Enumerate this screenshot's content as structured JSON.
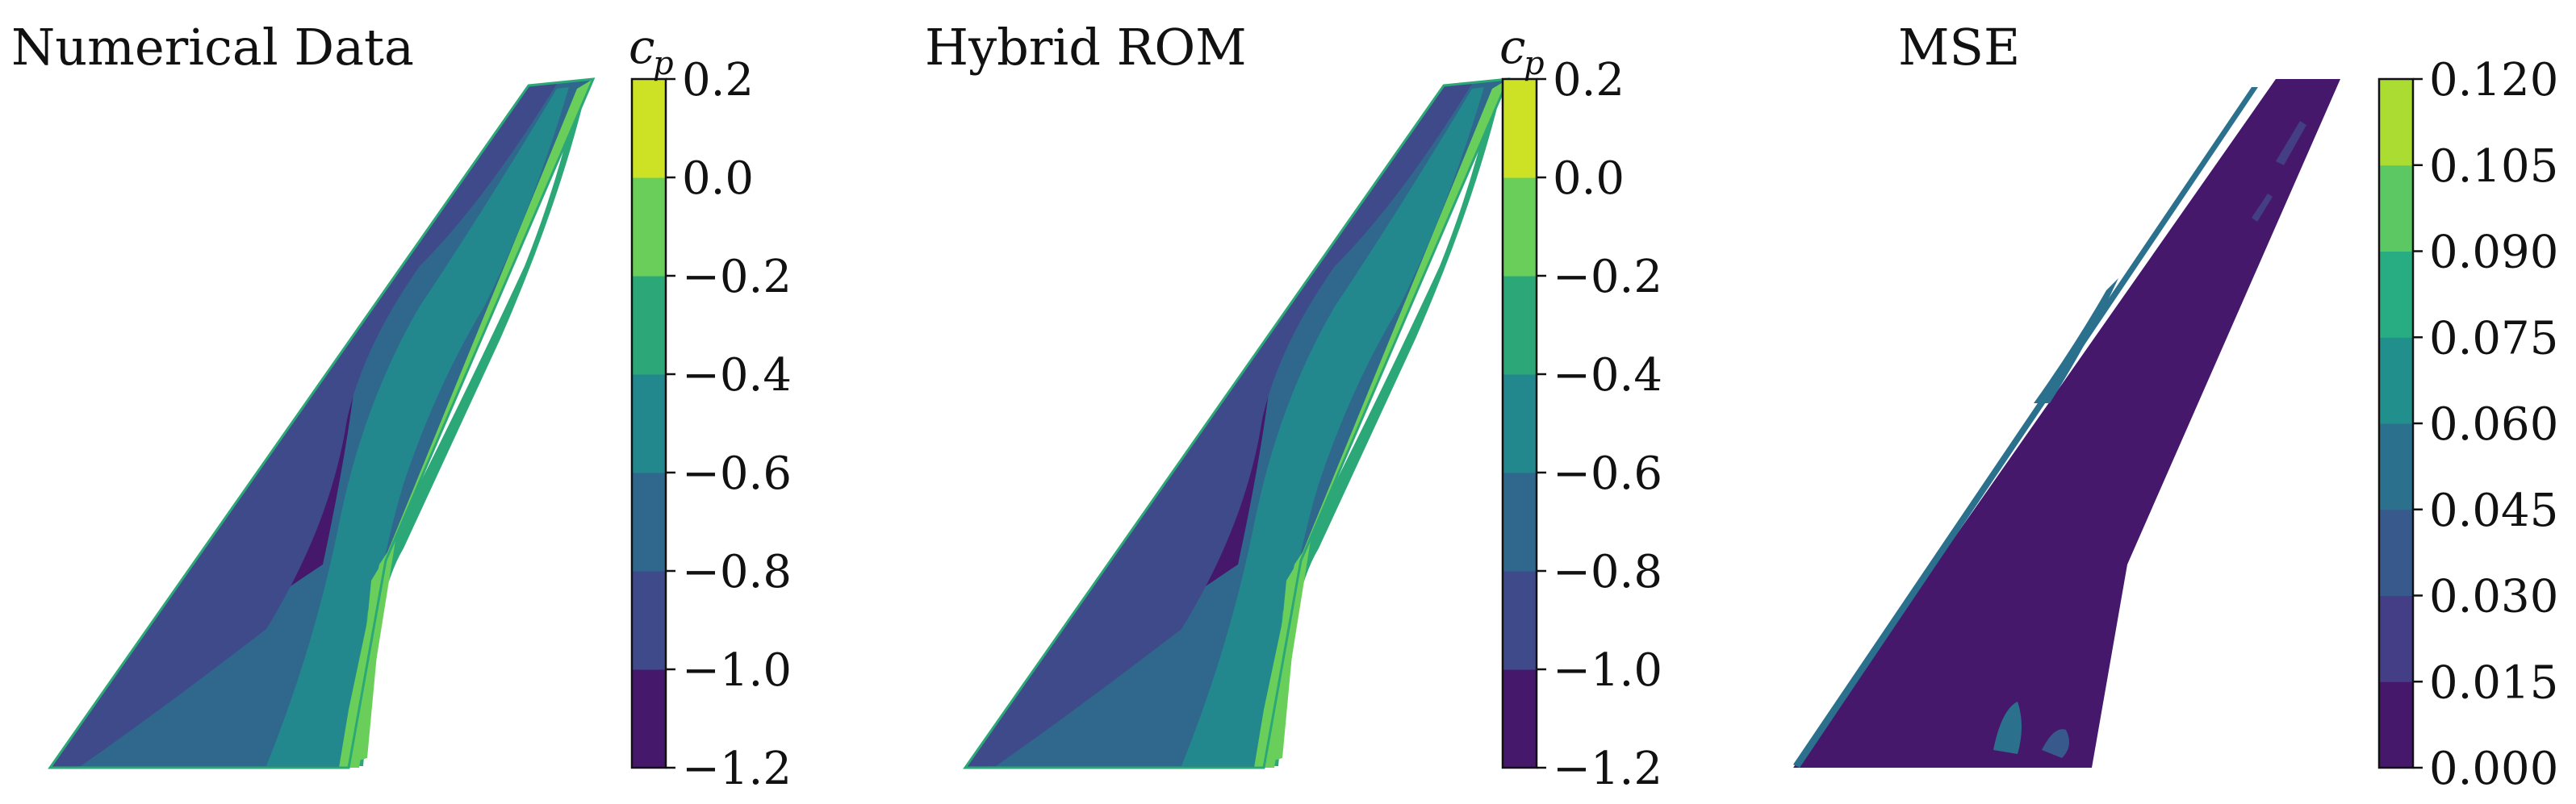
{
  "chart_data": [
    {
      "type": "heatmap",
      "title": "Numerical Data",
      "colorbar": {
        "label": "c",
        "label_subscript": "p",
        "levels": [
          -1.2,
          -1.0,
          -0.8,
          -0.6,
          -0.4,
          -0.2,
          0.0,
          0.2
        ],
        "tick_labels": [
          "−1.2",
          "−1.0",
          "−0.8",
          "−0.6",
          "−0.4",
          "−0.2",
          "0.0",
          "0.2"
        ],
        "colors": [
          "#45186b",
          "#3f4a8a",
          "#30688d",
          "#23878e",
          "#2ca878",
          "#6acf5a",
          "#cde225"
        ]
      },
      "field": {
        "wing_fill_value": -0.6,
        "regions": [
          {
            "name": "upper-suction-zone",
            "value": -1.1
          },
          {
            "name": "forward-band",
            "value": -0.9
          },
          {
            "name": "mid-chord",
            "value": -0.5
          },
          {
            "name": "trailing-strip",
            "value": -0.3
          },
          {
            "name": "trailing-edge",
            "value": -0.1
          },
          {
            "name": "root-trailing-edge",
            "value": -0.1
          }
        ]
      }
    },
    {
      "type": "heatmap",
      "title": "Hybrid ROM",
      "colorbar": {
        "label": "c",
        "label_subscript": "p",
        "levels": [
          -1.2,
          -1.0,
          -0.8,
          -0.6,
          -0.4,
          -0.2,
          0.0,
          0.2
        ],
        "tick_labels": [
          "−1.2",
          "−1.0",
          "−0.8",
          "−0.6",
          "−0.4",
          "−0.2",
          "0.0",
          "0.2"
        ],
        "colors": [
          "#45186b",
          "#3f4a8a",
          "#30688d",
          "#23878e",
          "#2ca878",
          "#6acf5a",
          "#cde225"
        ]
      },
      "field": {
        "wing_fill_value": -0.6,
        "regions": [
          {
            "name": "upper-suction-zone",
            "value": -1.1
          },
          {
            "name": "forward-band",
            "value": -0.9
          },
          {
            "name": "mid-chord",
            "value": -0.5
          },
          {
            "name": "trailing-strip",
            "value": -0.3
          },
          {
            "name": "trailing-edge",
            "value": -0.1
          },
          {
            "name": "root-trailing-edge",
            "value": -0.1
          }
        ]
      }
    },
    {
      "type": "heatmap",
      "title": "MSE",
      "colorbar": {
        "label": "",
        "label_subscript": "",
        "levels": [
          0.0,
          0.015,
          0.03,
          0.045,
          0.06,
          0.075,
          0.09,
          0.105,
          0.12
        ],
        "tick_labels": [
          "0.000",
          "0.015",
          "0.030",
          "0.045",
          "0.060",
          "0.075",
          "0.090",
          "0.105",
          "0.120"
        ],
        "colors": [
          "#45186b",
          "#433e85",
          "#37598c",
          "#2b718e",
          "#21908d",
          "#27ad81",
          "#5cc864",
          "#aadc32"
        ]
      },
      "field": {
        "wing_fill_value": 0.005,
        "regions": [
          {
            "name": "mid-span-streak",
            "value": 0.05
          },
          {
            "name": "tip-streak",
            "value": 0.025
          },
          {
            "name": "root-spot-1",
            "value": 0.05
          },
          {
            "name": "root-spot-2",
            "value": 0.04
          },
          {
            "name": "leading-edge",
            "value": 0.06
          }
        ]
      }
    }
  ]
}
